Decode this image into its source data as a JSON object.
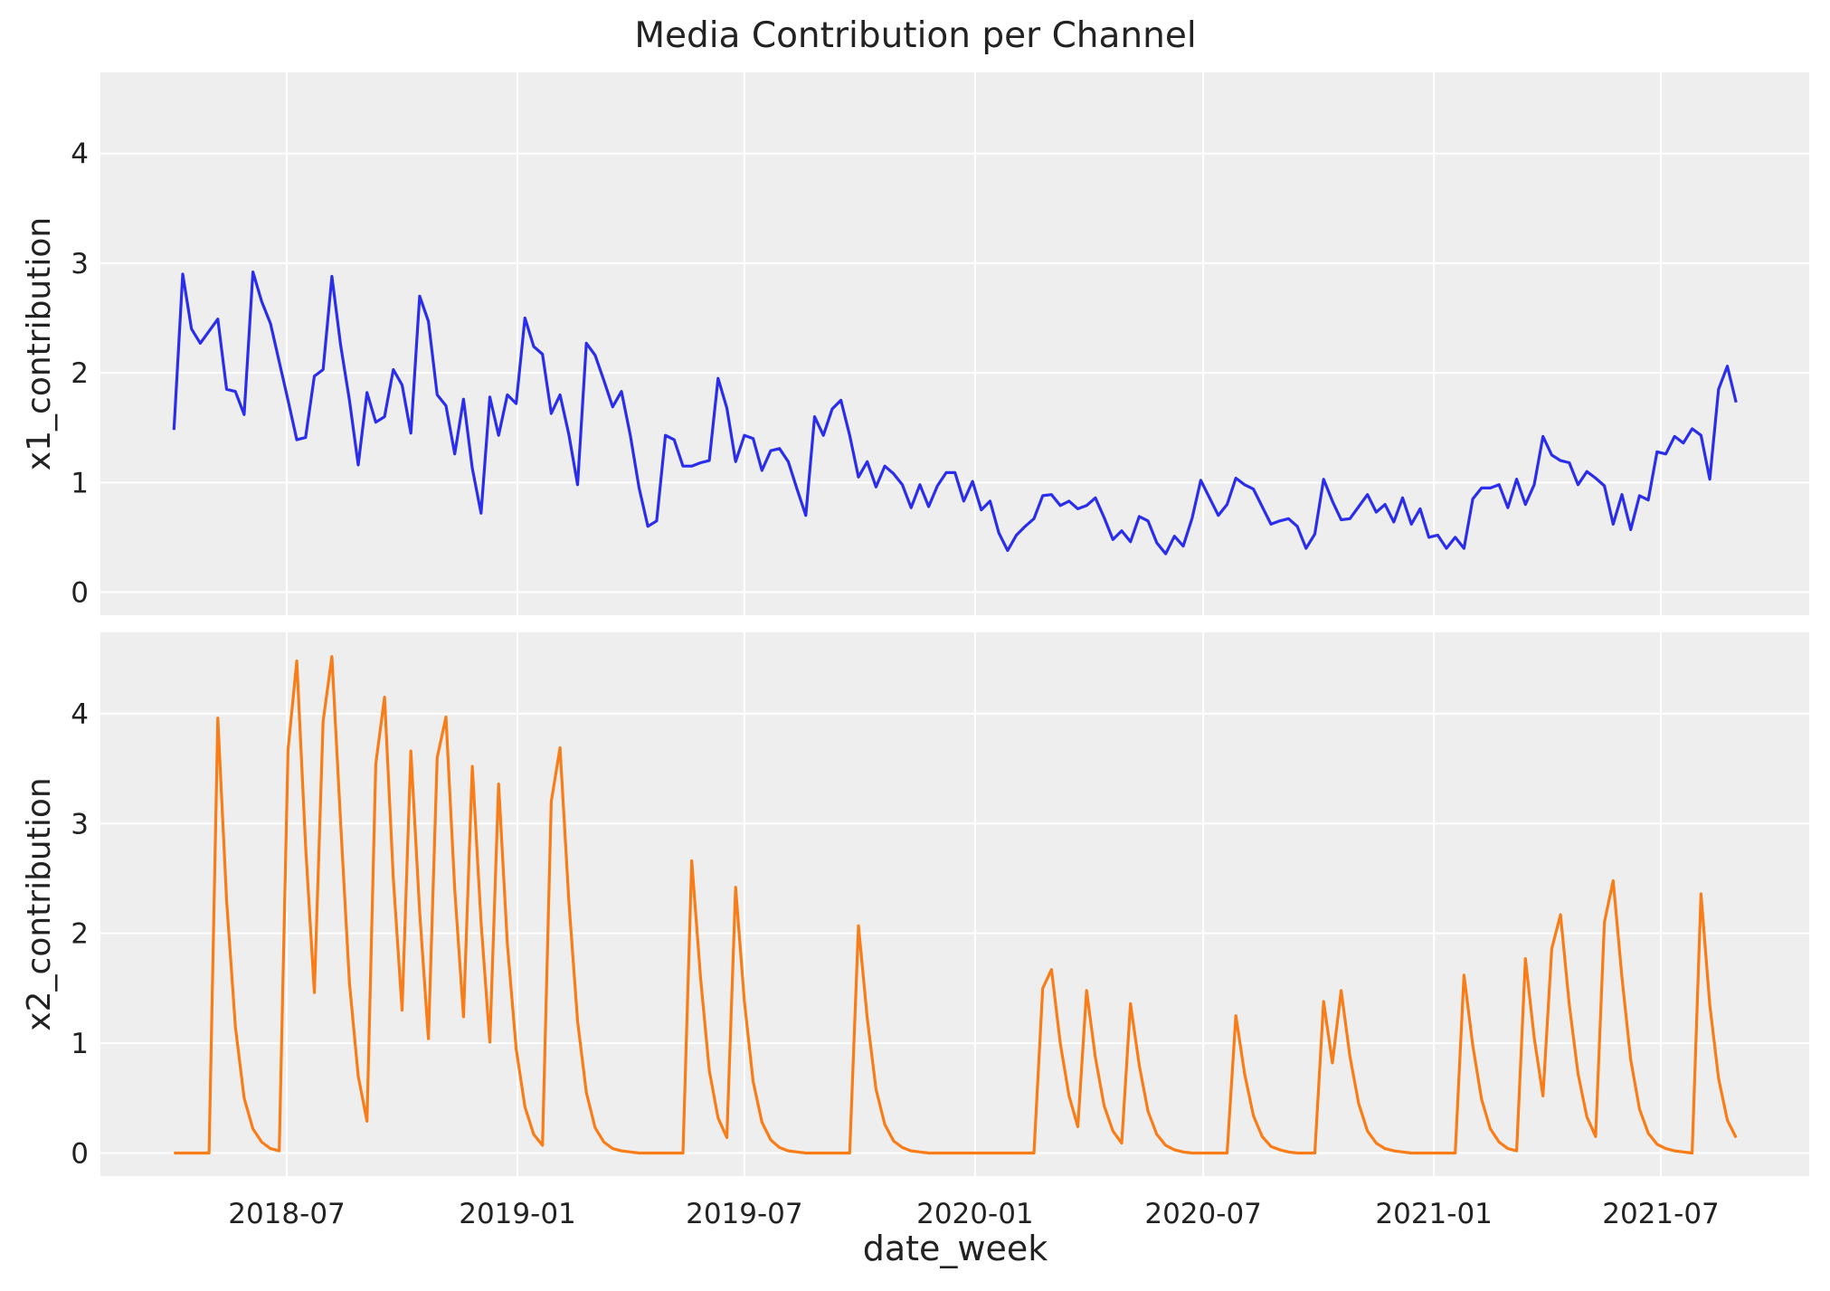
{
  "chart_data": {
    "type": "line",
    "title": "Media Contribution per Channel",
    "xlabel": "date_week",
    "x_tick_labels": [
      "2018-07",
      "2019-01",
      "2019-07",
      "2020-01",
      "2020-07",
      "2021-01",
      "2021-07"
    ],
    "y_ticks": [
      0,
      1,
      2,
      3,
      4
    ],
    "ylim": [
      -0.21,
      4.74
    ],
    "grid": true,
    "background": "#eeeeee",
    "x": [
      "2018-04-02",
      "2018-04-09",
      "2018-04-16",
      "2018-04-23",
      "2018-04-30",
      "2018-05-07",
      "2018-05-14",
      "2018-05-21",
      "2018-05-28",
      "2018-06-04",
      "2018-06-11",
      "2018-06-18",
      "2018-06-25",
      "2018-07-02",
      "2018-07-09",
      "2018-07-16",
      "2018-07-23",
      "2018-07-30",
      "2018-08-06",
      "2018-08-13",
      "2018-08-20",
      "2018-08-27",
      "2018-09-03",
      "2018-09-10",
      "2018-09-17",
      "2018-09-24",
      "2018-10-01",
      "2018-10-08",
      "2018-10-15",
      "2018-10-22",
      "2018-10-29",
      "2018-11-05",
      "2018-11-12",
      "2018-11-19",
      "2018-11-26",
      "2018-12-03",
      "2018-12-10",
      "2018-12-17",
      "2018-12-24",
      "2018-12-31",
      "2019-01-07",
      "2019-01-14",
      "2019-01-21",
      "2019-01-28",
      "2019-02-04",
      "2019-02-11",
      "2019-02-18",
      "2019-02-25",
      "2019-03-04",
      "2019-03-11",
      "2019-03-18",
      "2019-03-25",
      "2019-04-01",
      "2019-04-08",
      "2019-04-15",
      "2019-04-22",
      "2019-04-29",
      "2019-05-06",
      "2019-05-13",
      "2019-05-20",
      "2019-05-27",
      "2019-06-03",
      "2019-06-10",
      "2019-06-17",
      "2019-06-24",
      "2019-07-01",
      "2019-07-08",
      "2019-07-15",
      "2019-07-22",
      "2019-07-29",
      "2019-08-05",
      "2019-08-12",
      "2019-08-19",
      "2019-08-26",
      "2019-09-02",
      "2019-09-09",
      "2019-09-16",
      "2019-09-23",
      "2019-09-30",
      "2019-10-07",
      "2019-10-14",
      "2019-10-21",
      "2019-10-28",
      "2019-11-04",
      "2019-11-11",
      "2019-11-18",
      "2019-11-25",
      "2019-12-02",
      "2019-12-09",
      "2019-12-16",
      "2019-12-23",
      "2019-12-30",
      "2020-01-06",
      "2020-01-13",
      "2020-01-20",
      "2020-01-27",
      "2020-02-03",
      "2020-02-10",
      "2020-02-17",
      "2020-02-24",
      "2020-03-02",
      "2020-03-09",
      "2020-03-16",
      "2020-03-23",
      "2020-03-30",
      "2020-04-06",
      "2020-04-13",
      "2020-04-20",
      "2020-04-27",
      "2020-05-04",
      "2020-05-11",
      "2020-05-18",
      "2020-05-25",
      "2020-06-01",
      "2020-06-08",
      "2020-06-15",
      "2020-06-22",
      "2020-06-29",
      "2020-07-06",
      "2020-07-13",
      "2020-07-20",
      "2020-07-27",
      "2020-08-03",
      "2020-08-10",
      "2020-08-17",
      "2020-08-24",
      "2020-08-31",
      "2020-09-07",
      "2020-09-14",
      "2020-09-21",
      "2020-09-28",
      "2020-10-05",
      "2020-10-12",
      "2020-10-19",
      "2020-10-26",
      "2020-11-02",
      "2020-11-09",
      "2020-11-16",
      "2020-11-23",
      "2020-11-30",
      "2020-12-07",
      "2020-12-14",
      "2020-12-21",
      "2020-12-28",
      "2021-01-04",
      "2021-01-11",
      "2021-01-18",
      "2021-01-25",
      "2021-02-01",
      "2021-02-08",
      "2021-02-15",
      "2021-02-22",
      "2021-03-01",
      "2021-03-08",
      "2021-03-15",
      "2021-03-22",
      "2021-03-29",
      "2021-04-05",
      "2021-04-12",
      "2021-04-19",
      "2021-04-26",
      "2021-05-03",
      "2021-05-10",
      "2021-05-17",
      "2021-05-24",
      "2021-05-31",
      "2021-06-07",
      "2021-06-14",
      "2021-06-21",
      "2021-06-28",
      "2021-07-05",
      "2021-07-12",
      "2021-07-19",
      "2021-07-26",
      "2021-08-02",
      "2021-08-09",
      "2021-08-16",
      "2021-08-23",
      "2021-08-30"
    ],
    "panels": [
      {
        "ylabel": "x1_contribution",
        "color": "#2a2eec",
        "values": [
          1.48,
          2.9,
          2.4,
          2.27,
          2.38,
          2.49,
          1.85,
          1.83,
          1.62,
          2.92,
          2.65,
          2.45,
          2.1,
          1.75,
          1.39,
          1.41,
          1.97,
          2.03,
          2.88,
          2.25,
          1.75,
          1.16,
          1.82,
          1.55,
          1.6,
          2.03,
          1.89,
          1.45,
          2.7,
          2.47,
          1.8,
          1.7,
          1.26,
          1.76,
          1.13,
          0.72,
          1.78,
          1.43,
          1.8,
          1.72,
          2.5,
          2.24,
          2.17,
          1.63,
          1.8,
          1.44,
          0.98,
          2.27,
          2.16,
          1.93,
          1.69,
          1.83,
          1.43,
          0.95,
          0.6,
          0.65,
          1.43,
          1.39,
          1.15,
          1.15,
          1.18,
          1.2,
          1.95,
          1.68,
          1.19,
          1.43,
          1.4,
          1.11,
          1.29,
          1.31,
          1.19,
          0.94,
          0.7,
          1.6,
          1.43,
          1.67,
          1.75,
          1.43,
          1.05,
          1.19,
          0.96,
          1.15,
          1.08,
          0.98,
          0.77,
          0.98,
          0.78,
          0.97,
          1.09,
          1.09,
          0.83,
          1.01,
          0.75,
          0.83,
          0.54,
          0.38,
          0.52,
          0.6,
          0.67,
          0.88,
          0.89,
          0.79,
          0.83,
          0.76,
          0.79,
          0.86,
          0.68,
          0.48,
          0.56,
          0.46,
          0.69,
          0.65,
          0.45,
          0.35,
          0.51,
          0.42,
          0.67,
          1.02,
          0.86,
          0.7,
          0.8,
          1.04,
          0.98,
          0.94,
          0.78,
          0.62,
          0.65,
          0.67,
          0.6,
          0.4,
          0.53,
          1.03,
          0.83,
          0.66,
          0.67,
          0.78,
          0.89,
          0.73,
          0.8,
          0.64,
          0.86,
          0.62,
          0.76,
          0.5,
          0.52,
          0.4,
          0.5,
          0.4,
          0.85,
          0.95,
          0.95,
          0.98,
          0.77,
          1.03,
          0.8,
          0.98,
          1.42,
          1.25,
          1.2,
          1.18,
          0.98,
          1.1,
          1.04,
          0.97,
          0.62,
          0.89,
          0.57,
          0.88,
          0.84,
          1.28,
          1.26,
          1.42,
          1.36,
          1.49,
          1.43,
          1.03,
          1.85,
          2.06,
          1.73
        ]
      },
      {
        "ylabel": "x2_contribution",
        "color": "#fa7c17",
        "values": [
          0,
          0,
          0,
          0,
          0,
          3.96,
          2.3,
          1.15,
          0.5,
          0.22,
          0.1,
          0.04,
          0.02,
          3.67,
          4.48,
          2.8,
          1.46,
          3.93,
          4.52,
          3.0,
          1.55,
          0.7,
          0.29,
          3.54,
          4.15,
          2.5,
          1.3,
          3.66,
          2.2,
          1.04,
          3.6,
          3.97,
          2.4,
          1.24,
          3.52,
          2.1,
          1.01,
          3.36,
          1.9,
          0.95,
          0.42,
          0.17,
          0.07,
          3.2,
          3.69,
          2.3,
          1.2,
          0.55,
          0.23,
          0.1,
          0.04,
          0.02,
          0.01,
          0,
          0,
          0,
          0,
          0,
          0,
          2.66,
          1.6,
          0.75,
          0.32,
          0.14,
          2.42,
          1.38,
          0.65,
          0.28,
          0.12,
          0.05,
          0.02,
          0.01,
          0,
          0,
          0,
          0,
          0,
          0,
          2.07,
          1.23,
          0.58,
          0.26,
          0.11,
          0.05,
          0.02,
          0.01,
          0,
          0,
          0,
          0,
          0,
          0,
          0,
          0,
          0,
          0,
          0,
          0,
          0,
          1.5,
          1.67,
          1.0,
          0.52,
          0.24,
          1.48,
          0.87,
          0.43,
          0.2,
          0.09,
          1.36,
          0.8,
          0.38,
          0.17,
          0.07,
          0.03,
          0.01,
          0,
          0,
          0,
          0,
          0,
          1.25,
          0.72,
          0.34,
          0.15,
          0.06,
          0.03,
          0.01,
          0,
          0,
          0,
          1.38,
          0.82,
          1.48,
          0.88,
          0.45,
          0.2,
          0.09,
          0.04,
          0.02,
          0.01,
          0,
          0,
          0,
          0,
          0,
          0,
          1.62,
          0.98,
          0.49,
          0.22,
          0.1,
          0.04,
          0.02,
          1.77,
          1.05,
          0.52,
          1.86,
          2.17,
          1.35,
          0.72,
          0.33,
          0.15,
          2.1,
          2.48,
          1.6,
          0.85,
          0.4,
          0.18,
          0.08,
          0.04,
          0.02,
          0.01,
          0,
          2.36,
          1.35,
          0.68,
          0.3,
          0.14
        ]
      }
    ]
  }
}
